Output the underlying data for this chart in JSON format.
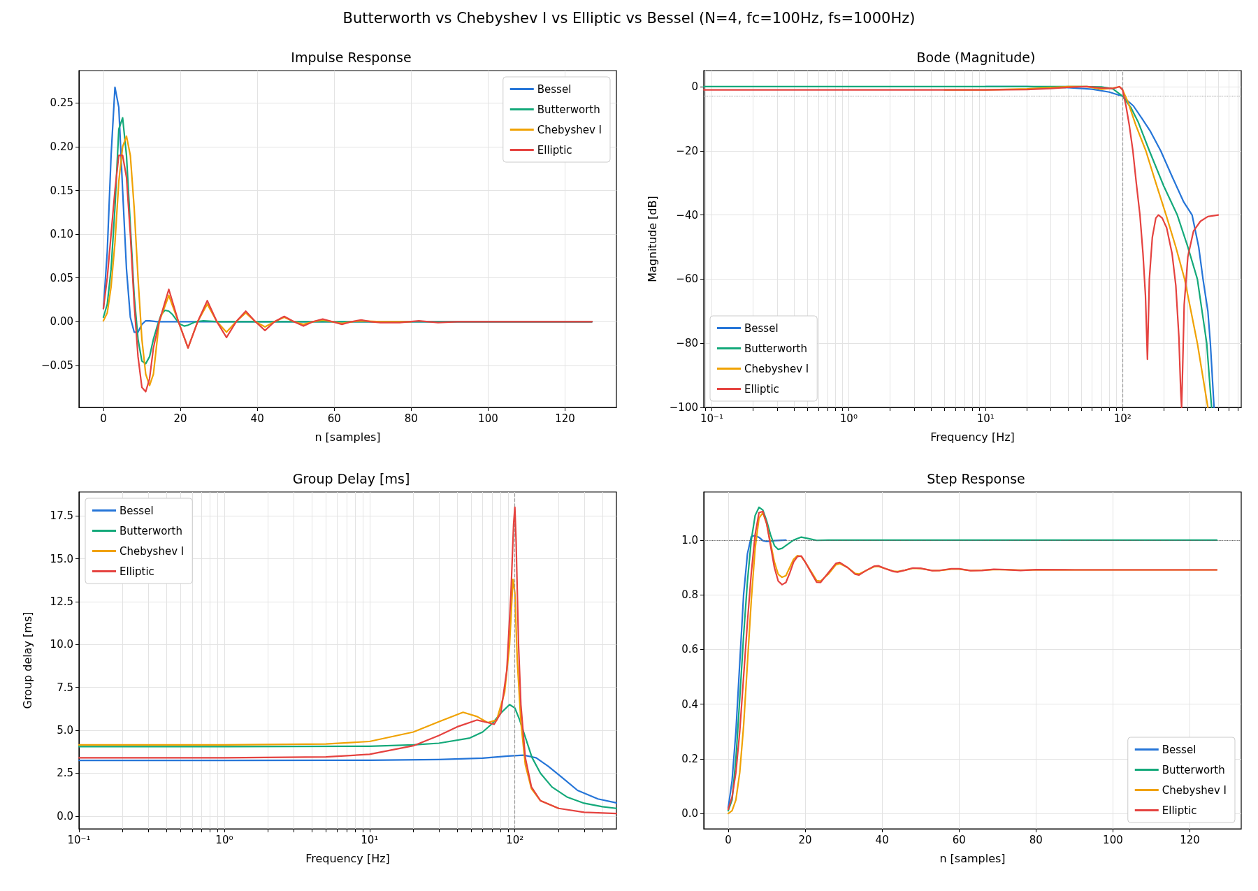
{
  "chart_data": [
    {
      "type": "other",
      "title": "Butterworth vs Chebyshev I vs Elliptic vs Bessel (N=4, fc=100Hz, fs=1000Hz)"
    },
    {
      "type": "line",
      "title": "Impulse Response",
      "xlabel": "n [samples]",
      "xlim": [
        -6.35,
        133.35
      ],
      "xticks": [
        0,
        20,
        40,
        60,
        80,
        100,
        120
      ],
      "ylim": [
        -0.098,
        0.287
      ],
      "yticks": [
        {
          "value": -0.05,
          "label": "−0.05"
        },
        {
          "value": 0,
          "label": "0.00"
        },
        {
          "value": 0.05,
          "label": "0.05"
        },
        {
          "value": 0.1,
          "label": "0.10"
        },
        {
          "value": 0.15,
          "label": "0.15"
        },
        {
          "value": 0.2,
          "label": "0.20"
        },
        {
          "value": 0.25,
          "label": "0.25"
        }
      ],
      "grid": true,
      "legend": "top right",
      "marker": "none",
      "line_style": "solid",
      "series": [
        {
          "name": "Bessel",
          "color": "#2575d8",
          "x": [
            0,
            1,
            2,
            3,
            4,
            5,
            6,
            7,
            8,
            9,
            10,
            11,
            12,
            14,
            20,
            127
          ],
          "values": [
            0.015,
            0.08,
            0.19,
            0.268,
            0.245,
            0.15,
            0.06,
            0.005,
            -0.012,
            -0.012,
            -0.003,
            0.001,
            0.001,
            0,
            0,
            0
          ]
        },
        {
          "name": "Butterworth",
          "color": "#14a97a",
          "x": [
            0,
            1,
            2,
            3,
            4,
            5,
            6,
            7,
            8,
            9,
            10,
            11,
            12,
            13,
            14,
            15,
            16,
            17,
            18,
            19,
            20,
            21,
            22,
            23,
            24,
            26,
            30,
            40,
            127
          ],
          "values": [
            0.005,
            0.02,
            0.06,
            0.13,
            0.22,
            0.233,
            0.19,
            0.11,
            0.03,
            -0.02,
            -0.045,
            -0.048,
            -0.04,
            -0.02,
            -0.005,
            0.008,
            0.013,
            0.012,
            0.008,
            0.002,
            -0.003,
            -0.005,
            -0.004,
            -0.002,
            0,
            0.001,
            0,
            0,
            0
          ]
        },
        {
          "name": "Chebyshev I",
          "color": "#f0a202",
          "x": [
            0,
            1,
            2,
            3,
            4,
            5,
            6,
            7,
            8,
            9,
            10,
            11,
            12,
            13,
            14.5,
            17,
            19.5,
            22,
            24.5,
            27,
            29.5,
            32,
            34.5,
            37,
            39.5,
            42,
            44.5,
            47,
            49.5,
            52,
            54.5,
            57,
            59.5,
            62,
            64.5,
            67,
            72,
            80
          ],
          "values": [
            0.001,
            0.01,
            0.04,
            0.09,
            0.16,
            0.2,
            0.212,
            0.19,
            0.13,
            0.05,
            -0.02,
            -0.06,
            -0.073,
            -0.06,
            0,
            0.03,
            0,
            -0.03,
            0,
            0.02,
            0,
            -0.012,
            0,
            0.01,
            0,
            -0.006,
            0,
            0.005,
            0,
            -0.003,
            0,
            0.002,
            0,
            -0.002,
            0,
            0.001,
            0,
            0
          ]
        },
        {
          "name": "Elliptic",
          "color": "#e5423f",
          "x": [
            0,
            1,
            2,
            3,
            4,
            5,
            6,
            7,
            8,
            9,
            10,
            11,
            12,
            13,
            14.5,
            17,
            19.5,
            22,
            24.5,
            27,
            29.5,
            32,
            34.5,
            37,
            39.5,
            42,
            44.5,
            47,
            49.5,
            52,
            54.5,
            57,
            59.5,
            62,
            64.5,
            67,
            69.5,
            72,
            77,
            82,
            87,
            92,
            97,
            102,
            110,
            120,
            127
          ],
          "values": [
            0.015,
            0.05,
            0.1,
            0.15,
            0.19,
            0.19,
            0.165,
            0.1,
            0.02,
            -0.04,
            -0.075,
            -0.08,
            -0.065,
            -0.03,
            0,
            0.037,
            0,
            -0.03,
            0,
            0.024,
            0,
            -0.018,
            0,
            0.012,
            0,
            -0.01,
            0,
            0.006,
            0,
            -0.005,
            0,
            0.003,
            0,
            -0.003,
            0,
            0.002,
            0,
            -0.001,
            -0.001,
            0.001,
            -0.001,
            0,
            0,
            0,
            0,
            0,
            0
          ]
        }
      ]
    },
    {
      "type": "line",
      "title": "Bode (Magnitude)",
      "xlabel": "Frequency [Hz]",
      "ylabel": "Magnitude [dB]",
      "log": "x",
      "xlim": [
        0.0874,
        736
      ],
      "xticks": [
        {
          "value": 0.09,
          "label": null
        },
        {
          "value": 0.1,
          "label": "10⁻¹"
        },
        {
          "value": 0.2,
          "label": null
        },
        {
          "value": 0.3,
          "label": null
        },
        {
          "value": 0.4,
          "label": null
        },
        {
          "value": 0.5,
          "label": null
        },
        {
          "value": 0.6,
          "label": null
        },
        {
          "value": 0.7,
          "label": null
        },
        {
          "value": 0.8,
          "label": null
        },
        {
          "value": 0.9,
          "label": null
        },
        {
          "value": 1,
          "label": "10⁰"
        },
        {
          "value": 2,
          "label": null
        },
        {
          "value": 3,
          "label": null
        },
        {
          "value": 4,
          "label": null
        },
        {
          "value": 5,
          "label": null
        },
        {
          "value": 6,
          "label": null
        },
        {
          "value": 7,
          "label": null
        },
        {
          "value": 8,
          "label": null
        },
        {
          "value": 9,
          "label": null
        },
        {
          "value": 10,
          "label": "10¹"
        },
        {
          "value": 20,
          "label": null
        },
        {
          "value": 30,
          "label": null
        },
        {
          "value": 40,
          "label": null
        },
        {
          "value": 50,
          "label": null
        },
        {
          "value": 60,
          "label": null
        },
        {
          "value": 70,
          "label": null
        },
        {
          "value": 80,
          "label": null
        },
        {
          "value": 90,
          "label": null
        },
        {
          "value": 100,
          "label": "10²"
        },
        {
          "value": 200,
          "label": null
        },
        {
          "value": 300,
          "label": null
        },
        {
          "value": 400,
          "label": null
        },
        {
          "value": 500,
          "label": null
        },
        {
          "value": 600,
          "label": null
        },
        {
          "value": 700,
          "label": null
        }
      ],
      "ylim": [
        -100,
        5
      ],
      "yticks": [
        {
          "value": -100,
          "label": "−100"
        },
        {
          "value": -80,
          "label": "−80"
        },
        {
          "value": -60,
          "label": "−60"
        },
        {
          "value": -40,
          "label": "−40"
        },
        {
          "value": -20,
          "label": "−20"
        },
        0
      ],
      "grid": true,
      "legend": "bottom left",
      "marker": "none",
      "line_style": "solid",
      "ref_lines": [
        {
          "axis": "y",
          "value": -3,
          "color": "#999999",
          "line_style": "dotted"
        },
        {
          "axis": "x",
          "value": 100,
          "color": "#999999",
          "line_style": "dashed"
        }
      ],
      "series": [
        {
          "name": "Bessel",
          "color": "#2575d8",
          "x": [
            10,
            20,
            40,
            60,
            80,
            100,
            120,
            139,
            160,
            190,
            230,
            280,
            322,
            360,
            387,
            420,
            438,
            466
          ],
          "values": [
            0,
            0,
            -0.3,
            -0.8,
            -1.7,
            -3,
            -6,
            -10,
            -14,
            -20,
            -28,
            -36,
            -40,
            -50,
            -60,
            -70,
            -80,
            -100
          ]
        },
        {
          "name": "Butterworth",
          "color": "#14a97a",
          "x": [
            0.0874,
            1,
            10,
            50,
            70,
            85,
            100,
            115,
            130,
            157,
            200,
            251,
            300,
            352,
            412,
            447
          ],
          "values": [
            0,
            0,
            0,
            0,
            -0.1,
            -0.7,
            -3,
            -6.5,
            -11,
            -20,
            -31,
            -40,
            -50,
            -60,
            -80,
            -100
          ]
        },
        {
          "name": "Chebyshev I",
          "color": "#f0a202",
          "x": [
            5,
            10,
            20,
            30,
            40,
            55,
            70,
            85,
            95,
            100,
            110,
            125,
            148,
            175,
            208,
            245,
            284,
            352,
            420
          ],
          "values": [
            -1,
            -1,
            -0.7,
            -0.3,
            0,
            0,
            -0.8,
            -0.5,
            0,
            -1,
            -5,
            -12,
            -20,
            -30,
            -40,
            -50,
            -60,
            -80,
            -100
          ]
        },
        {
          "name": "Elliptic",
          "color": "#e5423f",
          "x": [
            0.0874,
            1,
            10,
            20,
            30,
            40,
            55,
            70,
            85,
            95,
            100,
            106,
            112,
            119,
            126,
            134,
            141,
            147,
            152,
            157,
            165,
            175,
            183,
            195,
            210,
            230,
            245,
            258,
            266,
            270,
            274,
            282,
            300,
            330,
            370,
            420,
            500
          ],
          "values": [
            -1,
            -1,
            -1,
            -0.9,
            -0.6,
            -0.2,
            0,
            -0.4,
            -0.6,
            0,
            -1,
            -6,
            -12,
            -20,
            -30,
            -40,
            -52,
            -65,
            -85,
            -60,
            -47,
            -41,
            -40,
            -41,
            -44,
            -52,
            -62,
            -78,
            -95,
            -100,
            -90,
            -68,
            -53,
            -45,
            -42,
            -40.5,
            -40
          ]
        }
      ]
    },
    {
      "type": "line",
      "title": "Group Delay [ms]",
      "xlabel": "Frequency [Hz]",
      "ylabel": "Group delay [ms]",
      "log": "x",
      "xlim": [
        0.1,
        500
      ],
      "xticks": [
        {
          "value": 0.1,
          "label": "10⁻¹"
        },
        {
          "value": 0.2,
          "label": null
        },
        {
          "value": 0.3,
          "label": null
        },
        {
          "value": 0.4,
          "label": null
        },
        {
          "value": 0.5,
          "label": null
        },
        {
          "value": 0.6,
          "label": null
        },
        {
          "value": 0.7,
          "label": null
        },
        {
          "value": 0.8,
          "label": null
        },
        {
          "value": 0.9,
          "label": null
        },
        {
          "value": 1,
          "label": "10⁰"
        },
        {
          "value": 2,
          "label": null
        },
        {
          "value": 3,
          "label": null
        },
        {
          "value": 4,
          "label": null
        },
        {
          "value": 5,
          "label": null
        },
        {
          "value": 6,
          "label": null
        },
        {
          "value": 7,
          "label": null
        },
        {
          "value": 8,
          "label": null
        },
        {
          "value": 9,
          "label": null
        },
        {
          "value": 10,
          "label": "10¹"
        },
        {
          "value": 20,
          "label": null
        },
        {
          "value": 30,
          "label": null
        },
        {
          "value": 40,
          "label": null
        },
        {
          "value": 50,
          "label": null
        },
        {
          "value": 60,
          "label": null
        },
        {
          "value": 70,
          "label": null
        },
        {
          "value": 80,
          "label": null
        },
        {
          "value": 90,
          "label": null
        },
        {
          "value": 100,
          "label": "10²"
        },
        {
          "value": 200,
          "label": null
        },
        {
          "value": 300,
          "label": null
        },
        {
          "value": 400,
          "label": null
        }
      ],
      "ylim": [
        -0.74,
        18.89
      ],
      "yticks": [
        {
          "value": 0,
          "label": "0.0"
        },
        {
          "value": 2.5,
          "label": "2.5"
        },
        {
          "value": 5,
          "label": "5.0"
        },
        {
          "value": 7.5,
          "label": "7.5"
        },
        {
          "value": 10,
          "label": "10.0"
        },
        {
          "value": 12.5,
          "label": "12.5"
        },
        {
          "value": 15,
          "label": "15.0"
        },
        {
          "value": 17.5,
          "label": "17.5"
        }
      ],
      "grid": true,
      "legend": "top left",
      "marker": "none",
      "line_style": "solid",
      "ref_lines": [
        {
          "axis": "x",
          "value": 100,
          "color": "#999999",
          "line_style": "dashed"
        }
      ],
      "series": [
        {
          "name": "Bessel",
          "color": "#2575d8",
          "x": [
            0.1,
            1,
            10,
            30,
            60,
            90,
            115,
            140,
            170,
            215,
            270,
            373,
            500
          ],
          "values": [
            3.25,
            3.25,
            3.26,
            3.3,
            3.38,
            3.5,
            3.55,
            3.4,
            2.9,
            2.2,
            1.5,
            1.0,
            0.77
          ]
        },
        {
          "name": "Butterworth",
          "color": "#14a97a",
          "x": [
            0.1,
            1,
            10,
            20,
            30,
            49,
            60,
            70,
            80,
            92,
            100,
            108,
            118,
            131,
            150,
            180,
            230,
            300,
            400,
            500
          ],
          "values": [
            4.05,
            4.05,
            4.07,
            4.15,
            4.25,
            4.55,
            4.9,
            5.4,
            6.0,
            6.5,
            6.3,
            5.6,
            4.6,
            3.43,
            2.5,
            1.7,
            1.1,
            0.75,
            0.55,
            0.45
          ]
        },
        {
          "name": "Chebyshev I",
          "color": "#f0a202",
          "x": [
            0.1,
            1,
            5,
            10,
            20,
            30,
            44,
            55,
            65,
            75,
            85,
            92,
            97,
            100,
            104,
            110,
            118,
            130,
            150,
            200
          ],
          "values": [
            4.15,
            4.15,
            4.2,
            4.35,
            4.9,
            5.5,
            6.05,
            5.8,
            5.45,
            5.6,
            7.2,
            10,
            13.8,
            13,
            9,
            5.5,
            3,
            1.6,
            0.9,
            0.45
          ]
        },
        {
          "name": "Elliptic",
          "color": "#e5423f",
          "x": [
            0.1,
            1,
            5,
            10,
            20,
            30,
            40,
            55,
            65,
            72,
            80,
            88,
            94,
            98,
            100,
            102,
            106,
            110,
            118,
            130,
            150,
            200,
            300,
            500
          ],
          "values": [
            3.4,
            3.4,
            3.45,
            3.6,
            4.1,
            4.7,
            5.2,
            5.6,
            5.45,
            5.35,
            6.0,
            8.5,
            13,
            17,
            18.0,
            16,
            10,
            6.5,
            3.4,
            1.7,
            0.9,
            0.45,
            0.22,
            0.15
          ]
        }
      ]
    },
    {
      "type": "line",
      "title": "Step Response",
      "xlabel": "n [samples]",
      "xlim": [
        -6.35,
        133.35
      ],
      "xticks": [
        0,
        20,
        40,
        60,
        80,
        100,
        120
      ],
      "ylim": [
        -0.056,
        1.176
      ],
      "yticks": [
        {
          "value": 0,
          "label": "0.0"
        },
        {
          "value": 0.2,
          "label": "0.2"
        },
        {
          "value": 0.4,
          "label": "0.4"
        },
        {
          "value": 0.6,
          "label": "0.6"
        },
        {
          "value": 0.8,
          "label": "0.8"
        },
        {
          "value": 1,
          "label": "1.0"
        }
      ],
      "grid": true,
      "legend": "bottom right",
      "marker": "none",
      "line_style": "solid",
      "ref_lines": [
        {
          "axis": "y",
          "value": 1,
          "color": "#666666",
          "line_style": "dotted"
        }
      ],
      "series": [
        {
          "name": "Bessel",
          "color": "#2575d8",
          "x": [
            0,
            1,
            2,
            3,
            4,
            5,
            6,
            7,
            8,
            9,
            10,
            12,
            15
          ],
          "values": [
            0.02,
            0.12,
            0.3,
            0.55,
            0.8,
            0.95,
            1.013,
            1.017,
            1.01,
            0.998,
            0.995,
            0.998,
            1.0
          ]
        },
        {
          "name": "Butterworth",
          "color": "#14a97a",
          "x": [
            0,
            1,
            2,
            3,
            4,
            5,
            6,
            7,
            8,
            9,
            10,
            11,
            12,
            13,
            14,
            15,
            17,
            19,
            21,
            23,
            26,
            127
          ],
          "values": [
            0.01,
            0.05,
            0.2,
            0.42,
            0.65,
            0.85,
            1.0,
            1.09,
            1.12,
            1.11,
            1.07,
            1.02,
            0.98,
            0.966,
            0.97,
            0.98,
            1.0,
            1.011,
            1.005,
            0.999,
            1.0,
            1.0
          ]
        },
        {
          "name": "Chebyshev I",
          "color": "#f0a202",
          "x": [
            0,
            1,
            2,
            3,
            4,
            5,
            6,
            7,
            8,
            9,
            10,
            11,
            12,
            13,
            14,
            15,
            16,
            17,
            18,
            19,
            20,
            22,
            23,
            24,
            26,
            28,
            29,
            31,
            33,
            34,
            36,
            38,
            39,
            41,
            43,
            44,
            46,
            48,
            50,
            53,
            55,
            58,
            60,
            63,
            66,
            69,
            72,
            76,
            80,
            90,
            127
          ],
          "values": [
            0,
            0.01,
            0.05,
            0.15,
            0.32,
            0.55,
            0.78,
            0.97,
            1.08,
            1.1,
            1.06,
            0.99,
            0.92,
            0.875,
            0.864,
            0.87,
            0.9,
            0.93,
            0.943,
            0.94,
            0.92,
            0.875,
            0.852,
            0.85,
            0.875,
            0.91,
            0.914,
            0.9,
            0.878,
            0.876,
            0.89,
            0.903,
            0.904,
            0.895,
            0.886,
            0.885,
            0.89,
            0.897,
            0.896,
            0.889,
            0.889,
            0.894,
            0.894,
            0.889,
            0.89,
            0.892,
            0.892,
            0.89,
            0.891,
            0.891,
            0.891
          ]
        },
        {
          "name": "Elliptic",
          "color": "#e5423f",
          "x": [
            0,
            1,
            2,
            3,
            4,
            5,
            6,
            7,
            8,
            9,
            10,
            11,
            12,
            13,
            14,
            15,
            16,
            17,
            18,
            19,
            20,
            22,
            23,
            24,
            26,
            28,
            29,
            31,
            33,
            34,
            36,
            38,
            39,
            41,
            43,
            44,
            46,
            48,
            50,
            53,
            55,
            58,
            60,
            63,
            66,
            69,
            72,
            76,
            80,
            90,
            127
          ],
          "values": [
            0.015,
            0.06,
            0.15,
            0.3,
            0.5,
            0.7,
            0.88,
            1.02,
            1.1,
            1.105,
            1.06,
            0.98,
            0.9,
            0.85,
            0.837,
            0.845,
            0.88,
            0.92,
            0.94,
            0.942,
            0.92,
            0.87,
            0.846,
            0.845,
            0.88,
            0.915,
            0.918,
            0.9,
            0.875,
            0.872,
            0.89,
            0.905,
            0.906,
            0.895,
            0.885,
            0.883,
            0.89,
            0.898,
            0.897,
            0.888,
            0.889,
            0.895,
            0.895,
            0.888,
            0.889,
            0.893,
            0.892,
            0.889,
            0.892,
            0.891,
            0.891
          ]
        }
      ]
    }
  ]
}
